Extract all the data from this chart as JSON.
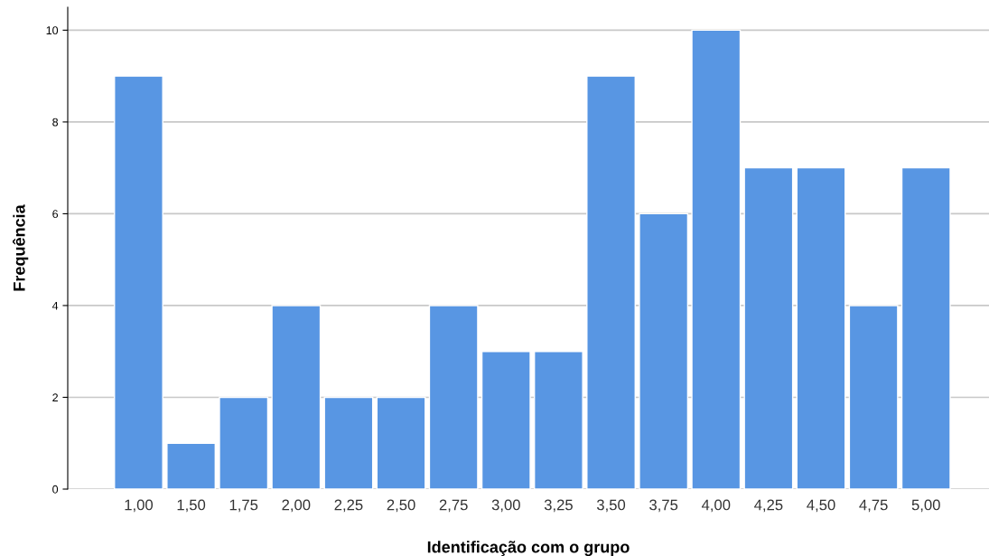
{
  "chart_data": {
    "type": "bar",
    "xlabel": "Identificação com o grupo",
    "ylabel": "Frequência",
    "categories": [
      "1,00",
      "1,50",
      "1,75",
      "2,00",
      "2,25",
      "2,50",
      "2,75",
      "3,00",
      "3,25",
      "3,50",
      "3,75",
      "4,00",
      "4,25",
      "4,50",
      "4,75",
      "5,00"
    ],
    "values": [
      9,
      1,
      2,
      4,
      2,
      2,
      4,
      3,
      3,
      9,
      6,
      10,
      7,
      7,
      4,
      7
    ],
    "color": "#5896e3",
    "ylim": [
      0,
      10.5
    ],
    "yticks": [
      0,
      2,
      4,
      6,
      8,
      10
    ],
    "grid": "y",
    "legend": false
  }
}
